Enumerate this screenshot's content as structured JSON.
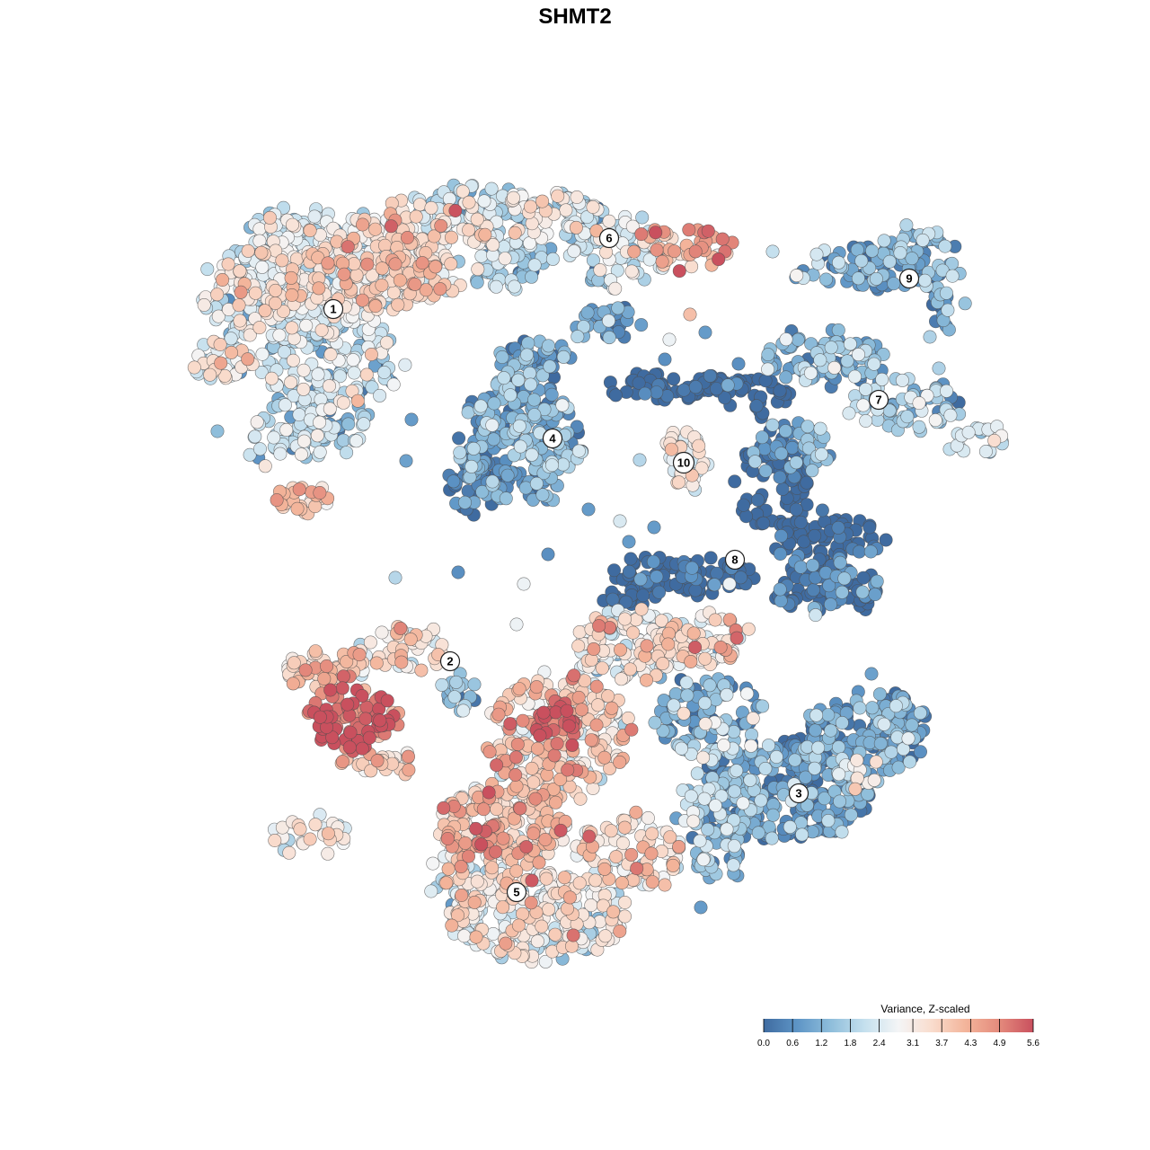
{
  "chart_data": {
    "type": "scatter",
    "title": "SHMT2",
    "xlabel": "",
    "ylabel": "",
    "grid": false,
    "axes_visible": false,
    "point_count_approx": 3600,
    "legend": {
      "title": "Variance, Z-scaled",
      "placement": "bottom-right",
      "range": [
        0.0,
        5.6
      ],
      "ticks": [
        "0.0",
        "0.6",
        "1.2",
        "1.8",
        "2.4",
        "3.1",
        "3.7",
        "4.3",
        "4.9",
        "5.6"
      ],
      "colors": [
        "#3f6ba0",
        "#5e95c6",
        "#8fbedb",
        "#c5e0ee",
        "#f4f5f6",
        "#f9dccd",
        "#f3b49a",
        "#e48a7c",
        "#c9505e"
      ]
    },
    "clusters": [
      {
        "label": "1",
        "mean_value": 2.4
      },
      {
        "label": "2",
        "mean_value": 2.9
      },
      {
        "label": "3",
        "mean_value": 1.5
      },
      {
        "label": "4",
        "mean_value": 1.6
      },
      {
        "label": "5",
        "mean_value": 2.8
      },
      {
        "label": "6",
        "mean_value": 2.3
      },
      {
        "label": "7",
        "mean_value": 1.9
      },
      {
        "label": "8",
        "mean_value": 1.0
      },
      {
        "label": "9",
        "mean_value": 1.6
      },
      {
        "label": "10",
        "mean_value": 2.4
      }
    ]
  }
}
